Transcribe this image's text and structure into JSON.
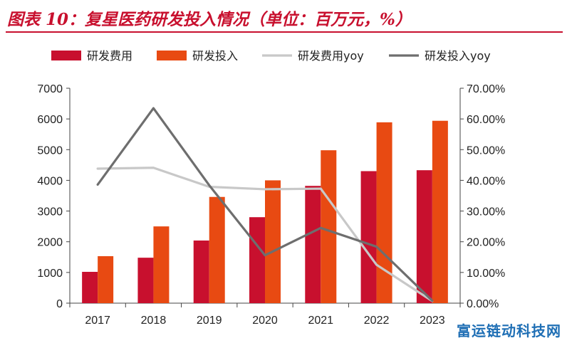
{
  "title": "图表 10：复星医药研发投入情况（单位：百万元，%）",
  "watermark": "富运链动科技网",
  "colors": {
    "accent": "#c8102e",
    "series_expense": "#c8102e",
    "series_invest": "#e84a12",
    "series_expense_yoy": "#c8c8c8",
    "series_invest_yoy": "#6e6e6e"
  },
  "chart_data": {
    "type": "bar",
    "categories": [
      "2017",
      "2018",
      "2019",
      "2020",
      "2021",
      "2022",
      "2023"
    ],
    "series": [
      {
        "name": "研发费用",
        "type": "bar",
        "axis": "left",
        "values": [
          1020,
          1480,
          2040,
          2800,
          3820,
          4300,
          4330
        ]
      },
      {
        "name": "研发投入",
        "type": "bar",
        "axis": "left",
        "values": [
          1530,
          2500,
          3460,
          4000,
          4980,
          5890,
          5940
        ]
      },
      {
        "name": "研发费用yoy",
        "type": "line",
        "axis": "right",
        "values": [
          43.8,
          44.1,
          37.9,
          37.1,
          37.3,
          12.5,
          0.7
        ]
      },
      {
        "name": "研发投入yoy",
        "type": "line",
        "axis": "right",
        "values": [
          38.6,
          63.5,
          38.4,
          15.6,
          24.5,
          18.4,
          0.8
        ]
      }
    ],
    "ylim_left": [
      0,
      7000
    ],
    "yticks_left": [
      "0",
      "1000",
      "2000",
      "3000",
      "4000",
      "5000",
      "6000",
      "7000"
    ],
    "ylim_right": [
      0,
      70
    ],
    "yticks_right": [
      "0.00%",
      "10.00%",
      "20.00%",
      "30.00%",
      "40.00%",
      "50.00%",
      "60.00%",
      "70.00%"
    ],
    "grid": false,
    "legend": "top"
  }
}
